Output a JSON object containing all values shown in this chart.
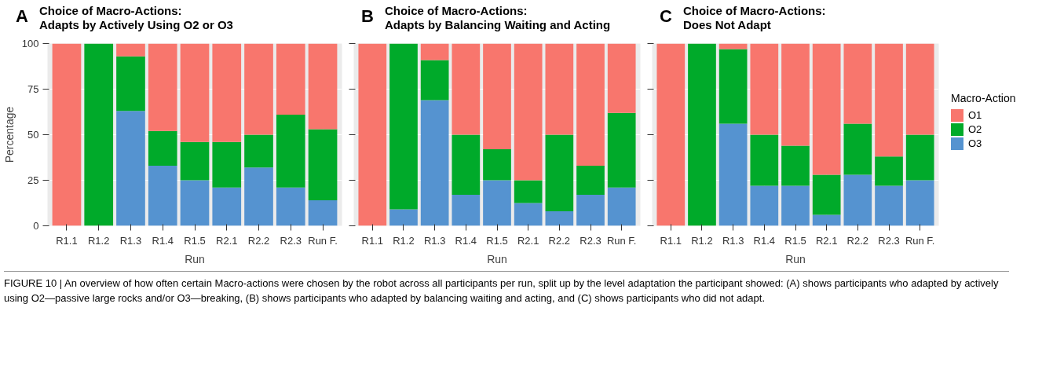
{
  "chart_data": [
    {
      "type": "bar",
      "stacked": true,
      "title": "Choice of Macro-Actions:",
      "subtitle": "Adapts by Actively Using O2 or O3",
      "xlabel": "Run",
      "ylabel": "Percentage",
      "annotations": [
        "A"
      ],
      "categories": [
        "R1.1",
        "R1.2",
        "R1.3",
        "R1.4",
        "R1.5",
        "R2.1",
        "R2.2",
        "R2.3",
        "Run F."
      ],
      "ylim": [
        0,
        100
      ],
      "yticks": [
        0,
        25,
        50,
        75,
        100
      ],
      "grid": true,
      "series": [
        {
          "color": "#5593d0",
          "values": [
            0,
            0,
            63,
            33,
            25,
            21,
            32,
            21,
            14
          ]
        },
        {
          "color": "#00aa2a",
          "values": [
            0,
            100,
            30,
            19,
            21,
            25,
            18,
            40,
            39
          ]
        },
        {
          "color": "#f8766d",
          "values": [
            100,
            0,
            7,
            48,
            54,
            54,
            50,
            39,
            47
          ]
        }
      ]
    },
    {
      "type": "bar",
      "stacked": true,
      "title": "Choice of Macro-Actions:",
      "subtitle": "Adapts by Balancing Waiting and Acting",
      "xlabel": "Run",
      "annotations": [
        "B"
      ],
      "categories": [
        "R1.1",
        "R1.2",
        "R1.3",
        "R1.4",
        "R1.5",
        "R2.1",
        "R2.2",
        "R2.3",
        "Run F."
      ],
      "ylim": [
        0,
        100
      ],
      "yticks": [
        0,
        25,
        50,
        75,
        100
      ],
      "grid": true,
      "tick_labels": "x",
      "series": [
        {
          "color": "#5593d0",
          "values": [
            0,
            9,
            69,
            17,
            25,
            12.5,
            8,
            17,
            21
          ]
        },
        {
          "color": "#00aa2a",
          "values": [
            0,
            91,
            22,
            33,
            17,
            12.5,
            42,
            16,
            41
          ]
        },
        {
          "color": "#f8766d",
          "values": [
            100,
            0,
            9,
            50,
            58,
            75,
            50,
            67,
            38
          ]
        }
      ]
    },
    {
      "type": "bar",
      "stacked": true,
      "title": "Choice of Macro-Actions:",
      "subtitle": "Does Not Adapt",
      "xlabel": "Run",
      "legend_title": "Macro-Action",
      "annotations": [
        "C",
        "FIGURE 10 | An overview of how often certain Macro-actions were chosen by the robot across all participants per run, split up by the level adaptation the participant showed: (A) shows participants who adapted by actively using O2—passive large rocks and/or O3—breaking, (B) shows participants who adapted by balancing waiting and acting, and (C) shows participants who did not adapt."
      ],
      "categories": [
        "R1.1",
        "R1.2",
        "R1.3",
        "R1.4",
        "R1.5",
        "R2.1",
        "R2.2",
        "R2.3",
        "Run F."
      ],
      "ylim": [
        0,
        100
      ],
      "yticks": [
        0,
        25,
        50,
        75,
        100
      ],
      "grid": true,
      "legend": "right",
      "tick_labels": "x",
      "series": [
        {
          "name": "O3",
          "color": "#5593d0",
          "values": [
            0,
            0,
            56,
            22,
            22,
            6,
            28,
            22,
            25
          ]
        },
        {
          "name": "O2",
          "color": "#00aa2a",
          "values": [
            0,
            100,
            41,
            28,
            22,
            22,
            28,
            16,
            25
          ]
        },
        {
          "name": "O1",
          "color": "#f8766d",
          "values": [
            100,
            0,
            3,
            50,
            56,
            72,
            44,
            62,
            50
          ]
        }
      ]
    }
  ]
}
